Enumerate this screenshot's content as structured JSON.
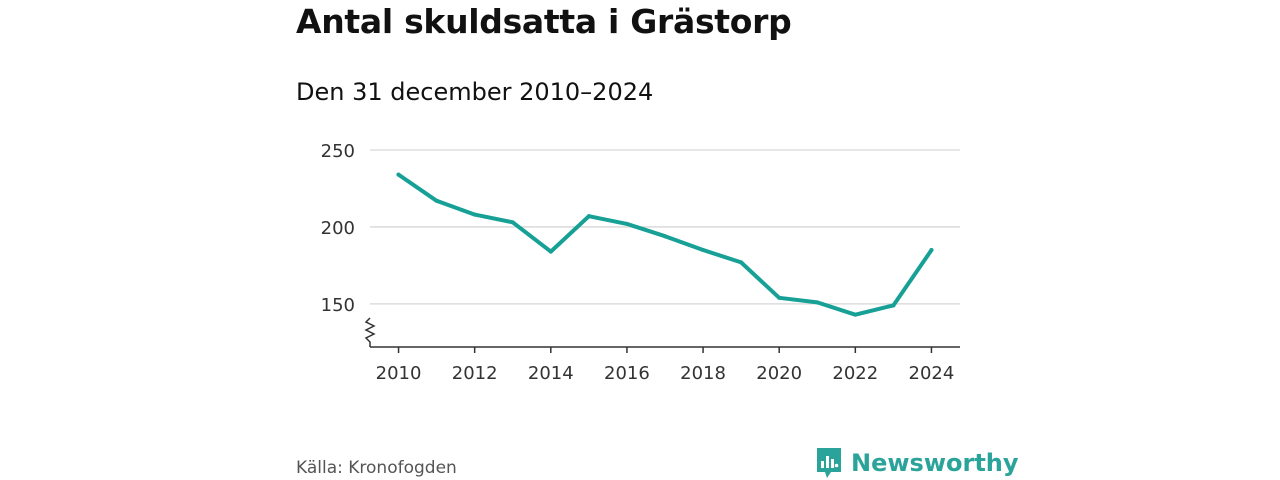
{
  "title": "Antal skuldsatta i Grästorp",
  "subtitle": "Den 31 december 2010–2024",
  "source": "Källa: Kronofogden",
  "brand": {
    "name": "Newsworthy",
    "icon": "newsworthy-logo-icon"
  },
  "colors": {
    "line": "#17a096",
    "grid": "#d6d6d6",
    "axis": "#333333",
    "text": "#333333",
    "brand": "#2aa39a"
  },
  "chart_data": {
    "type": "line",
    "title": "Antal skuldsatta i Grästorp",
    "subtitle": "Den 31 december 2010–2024",
    "xlabel": "",
    "ylabel": "",
    "x": [
      2010,
      2011,
      2012,
      2013,
      2014,
      2015,
      2016,
      2017,
      2018,
      2019,
      2020,
      2021,
      2022,
      2023,
      2024
    ],
    "series": [
      {
        "name": "Antal skuldsatta",
        "values": [
          234,
          217,
          208,
          203,
          184,
          207,
          202,
          194,
          185,
          177,
          154,
          151,
          143,
          149,
          185
        ]
      }
    ],
    "y_ticks": [
      150,
      200,
      250
    ],
    "x_ticks": [
      2010,
      2012,
      2014,
      2016,
      2018,
      2020,
      2022,
      2024
    ],
    "ylim": [
      122,
      250
    ],
    "xlim": [
      2009.25,
      2024.75
    ],
    "grid": true,
    "y_axis_break": true,
    "legend": "none"
  }
}
